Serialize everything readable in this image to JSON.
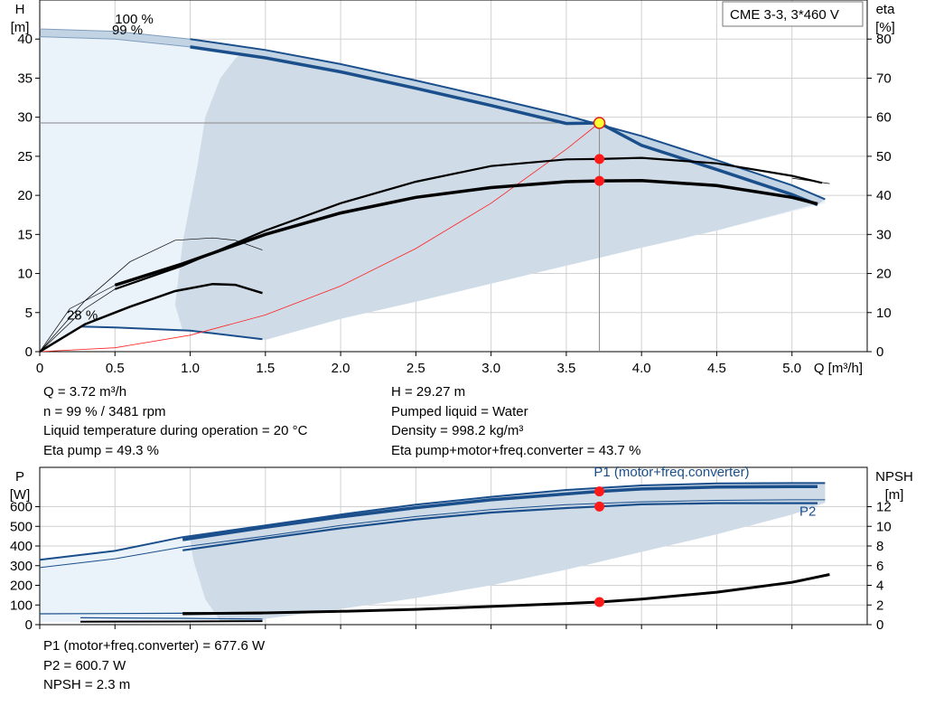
{
  "pump_label": "CME 3-3, 3*460 V",
  "info": {
    "q": "Q = 3.72 m³/h",
    "n": "n = 99 % / 3481 rpm",
    "liquid_temp": "Liquid temperature during operation = 20 °C",
    "eta_pump": "Eta pump = 49.3 %",
    "h": "H = 29.27 m",
    "pumped_liquid": "Pumped liquid = Water",
    "density": "Density = 998.2 kg/m³",
    "eta_total": "Eta pump+motor+freq.converter = 43.7 %",
    "p1": "P1 (motor+freq.converter) = 677.6 W",
    "p2": "P2 = 600.7 W",
    "npsh": "NPSH = 2.3 m"
  },
  "chart_data": [
    {
      "type": "line",
      "name": "head-efficiency",
      "x_axis": {
        "label": "Q [m³/h]",
        "range": [
          0,
          5.5
        ],
        "ticks": [
          0,
          0.5,
          1.0,
          1.5,
          2.0,
          2.5,
          3.0,
          3.5,
          4.0,
          4.5,
          5.0
        ],
        "tick_labels": [
          "0",
          "0.5",
          "1.0",
          "1.5",
          "2.0",
          "2.5",
          "3.0",
          "3.5",
          "4.0",
          "4.5",
          "5.0"
        ]
      },
      "y_left": {
        "label_line1": "H",
        "label_line2": "[m]",
        "range": [
          0,
          45
        ],
        "ticks": [
          0,
          5,
          10,
          15,
          20,
          25,
          30,
          35,
          40
        ]
      },
      "y_right": {
        "label_line1": "eta",
        "label_line2": "[%]",
        "range": [
          0,
          90
        ],
        "ticks": [
          0,
          10,
          20,
          30,
          40,
          50,
          60,
          70,
          80
        ]
      },
      "grid": true,
      "speed_labels": [
        {
          "text": "100 %",
          "x": 0.5,
          "y": 42.0
        },
        {
          "text": "99 %",
          "x": 0.48,
          "y": 40.6
        },
        {
          "text": "28 %",
          "x": 0.18,
          "y": 4.1
        }
      ],
      "head_100": [
        [
          0,
          41.3
        ],
        [
          0.5,
          41.0
        ],
        [
          1.0,
          40.0
        ],
        [
          1.5,
          38.6
        ],
        [
          2.0,
          36.8
        ],
        [
          2.5,
          34.7
        ],
        [
          3.0,
          32.5
        ],
        [
          3.5,
          30.2
        ],
        [
          4.0,
          27.6
        ],
        [
          4.5,
          24.5
        ],
        [
          5.0,
          21.3
        ],
        [
          5.22,
          19.5
        ]
      ],
      "head_99": [
        [
          0,
          40.3
        ],
        [
          0.5,
          40.0
        ],
        [
          1.0,
          39.0
        ],
        [
          1.5,
          37.6
        ],
        [
          2.0,
          35.8
        ],
        [
          2.5,
          33.7
        ],
        [
          3.0,
          31.5
        ],
        [
          3.5,
          29.2
        ],
        [
          3.72,
          29.27
        ],
        [
          4.0,
          26.4
        ],
        [
          4.5,
          23.3
        ],
        [
          5.0,
          20.1
        ],
        [
          5.17,
          18.8
        ]
      ],
      "head_28": [
        [
          0.27,
          3.2
        ],
        [
          0.5,
          3.1
        ],
        [
          1.0,
          2.7
        ],
        [
          1.48,
          1.6
        ]
      ],
      "eta_total_100": [
        [
          0,
          0
        ],
        [
          0.2,
          13
        ],
        [
          0.5,
          19
        ],
        [
          0.95,
          26
        ],
        [
          1.5,
          33.5
        ],
        [
          2.0,
          39.5
        ],
        [
          2.5,
          44
        ],
        [
          3.0,
          47
        ],
        [
          3.5,
          48.8
        ],
        [
          4.0,
          49.4
        ],
        [
          4.5,
          48.5
        ],
        [
          5.0,
          45.5
        ],
        [
          5.2,
          43.5
        ]
      ],
      "eta_total_99": [
        [
          0,
          0
        ],
        [
          0.2,
          11
        ],
        [
          0.5,
          17
        ],
        [
          0.95,
          22.5
        ],
        [
          1.5,
          30
        ],
        [
          2.0,
          35.5
        ],
        [
          2.5,
          39.5
        ],
        [
          3.0,
          42
        ],
        [
          3.5,
          43.5
        ],
        [
          3.72,
          43.7
        ],
        [
          4.0,
          43.8
        ],
        [
          4.5,
          42.5
        ],
        [
          5.0,
          39.5
        ],
        [
          5.17,
          37.8
        ]
      ],
      "eta_pump_99": [
        [
          0,
          0
        ],
        [
          0.3,
          11
        ],
        [
          0.5,
          16
        ],
        [
          0.95,
          22
        ],
        [
          1.5,
          31
        ],
        [
          2.0,
          38
        ],
        [
          2.5,
          43.5
        ],
        [
          3.0,
          47.5
        ],
        [
          3.5,
          49.2
        ],
        [
          3.72,
          49.3
        ],
        [
          4.0,
          49.6
        ],
        [
          4.5,
          48.2
        ],
        [
          5.0,
          45
        ],
        [
          5.2,
          43.2
        ]
      ],
      "eta_low_speed": [
        [
          0,
          0
        ],
        [
          0.3,
          13
        ],
        [
          0.6,
          23
        ],
        [
          0.9,
          28.5
        ],
        [
          1.15,
          29.1
        ],
        [
          1.3,
          28.5
        ],
        [
          1.48,
          26
        ]
      ],
      "eta_low_speed_total": [
        [
          0,
          0
        ],
        [
          0.3,
          7
        ],
        [
          0.6,
          11.5
        ],
        [
          0.9,
          15.5
        ],
        [
          1.15,
          17.3
        ],
        [
          1.3,
          17.1
        ],
        [
          1.48,
          15
        ]
      ],
      "system_curve": [
        [
          0,
          0
        ],
        [
          0.5,
          0.5
        ],
        [
          1.0,
          2.1
        ],
        [
          1.5,
          4.7
        ],
        [
          2.0,
          8.4
        ],
        [
          2.5,
          13.2
        ],
        [
          3.0,
          19.0
        ],
        [
          3.5,
          25.9
        ],
        [
          3.72,
          29.27
        ]
      ],
      "thin_tail": [
        [
          5.0,
          22.2
        ],
        [
          5.25,
          21.5
        ]
      ],
      "operating_point": {
        "q": 3.72,
        "h": 29.27
      },
      "eta_points": [
        {
          "q": 3.72,
          "eta": 49.3
        },
        {
          "q": 3.72,
          "eta": 43.7
        }
      ]
    },
    {
      "type": "line",
      "name": "power-npsh",
      "x_axis": {
        "range": [
          0,
          5.5
        ],
        "ticks": [
          0,
          0.5,
          1.0,
          1.5,
          2.0,
          2.5,
          3.0,
          3.5,
          4.0,
          4.5,
          5.0
        ]
      },
      "y_left": {
        "label_line1": "P",
        "label_line2": "[W]",
        "range": [
          0,
          800
        ],
        "ticks": [
          0,
          100,
          200,
          300,
          400,
          500,
          600
        ]
      },
      "y_right": {
        "label_line1": "NPSH",
        "label_line2": "[m]",
        "range": [
          0,
          16
        ],
        "ticks": [
          0,
          2,
          4,
          6,
          8,
          10,
          12
        ]
      },
      "grid": true,
      "series_labels": [
        {
          "text": "P1 (motor+freq.converter)",
          "x": 4.2,
          "y": 755,
          "color": "#1a4f8c"
        },
        {
          "text": "P2",
          "x": 5.05,
          "y": 555,
          "color": "#1a4f8c"
        }
      ],
      "p1_100": [
        [
          0,
          330
        ],
        [
          0.5,
          375
        ],
        [
          0.95,
          445
        ],
        [
          1.5,
          505
        ],
        [
          2.0,
          560
        ],
        [
          2.5,
          610
        ],
        [
          3.0,
          650
        ],
        [
          3.5,
          685
        ],
        [
          4.0,
          708
        ],
        [
          4.5,
          718
        ],
        [
          5.0,
          720
        ],
        [
          5.22,
          720
        ]
      ],
      "p1_99": [
        [
          0.95,
          432
        ],
        [
          1.5,
          495
        ],
        [
          2.0,
          548
        ],
        [
          2.5,
          595
        ],
        [
          3.0,
          635
        ],
        [
          3.5,
          665
        ],
        [
          3.72,
          677.6
        ],
        [
          4.0,
          690
        ],
        [
          4.5,
          700
        ],
        [
          5.0,
          702
        ],
        [
          5.17,
          702
        ]
      ],
      "p2_100": [
        [
          0,
          290
        ],
        [
          0.5,
          335
        ],
        [
          0.95,
          395
        ],
        [
          1.5,
          450
        ],
        [
          2.0,
          505
        ],
        [
          2.5,
          550
        ],
        [
          3.0,
          585
        ],
        [
          3.5,
          610
        ],
        [
          4.0,
          625
        ],
        [
          4.5,
          632
        ],
        [
          5.0,
          635
        ],
        [
          5.22,
          635
        ]
      ],
      "p2_99": [
        [
          0.95,
          378
        ],
        [
          1.5,
          438
        ],
        [
          2.0,
          490
        ],
        [
          2.5,
          535
        ],
        [
          3.0,
          570
        ],
        [
          3.5,
          593
        ],
        [
          3.72,
          600.7
        ],
        [
          4.0,
          612
        ],
        [
          4.5,
          618
        ],
        [
          5.0,
          618
        ],
        [
          5.17,
          618
        ]
      ],
      "p_low_upper": [
        [
          0,
          55
        ],
        [
          0.95,
          58
        ],
        [
          1.48,
          58
        ]
      ],
      "p_low_lower": [
        [
          0.27,
          35
        ],
        [
          0.95,
          32
        ],
        [
          1.48,
          28
        ]
      ],
      "p_low_bottom": [
        [
          0.27,
          15
        ],
        [
          0.95,
          16
        ],
        [
          1.48,
          18
        ]
      ],
      "npsh": [
        [
          0.95,
          1.1
        ],
        [
          1.5,
          1.2
        ],
        [
          2.0,
          1.35
        ],
        [
          2.5,
          1.55
        ],
        [
          3.0,
          1.85
        ],
        [
          3.5,
          2.15
        ],
        [
          3.72,
          2.3
        ],
        [
          4.0,
          2.6
        ],
        [
          4.5,
          3.3
        ],
        [
          5.0,
          4.3
        ],
        [
          5.25,
          5.1
        ]
      ],
      "points": [
        {
          "q": 3.72,
          "p": 677.6
        },
        {
          "q": 3.72,
          "p": 600.7
        },
        {
          "q": 3.72,
          "npsh": 2.3
        }
      ]
    }
  ]
}
